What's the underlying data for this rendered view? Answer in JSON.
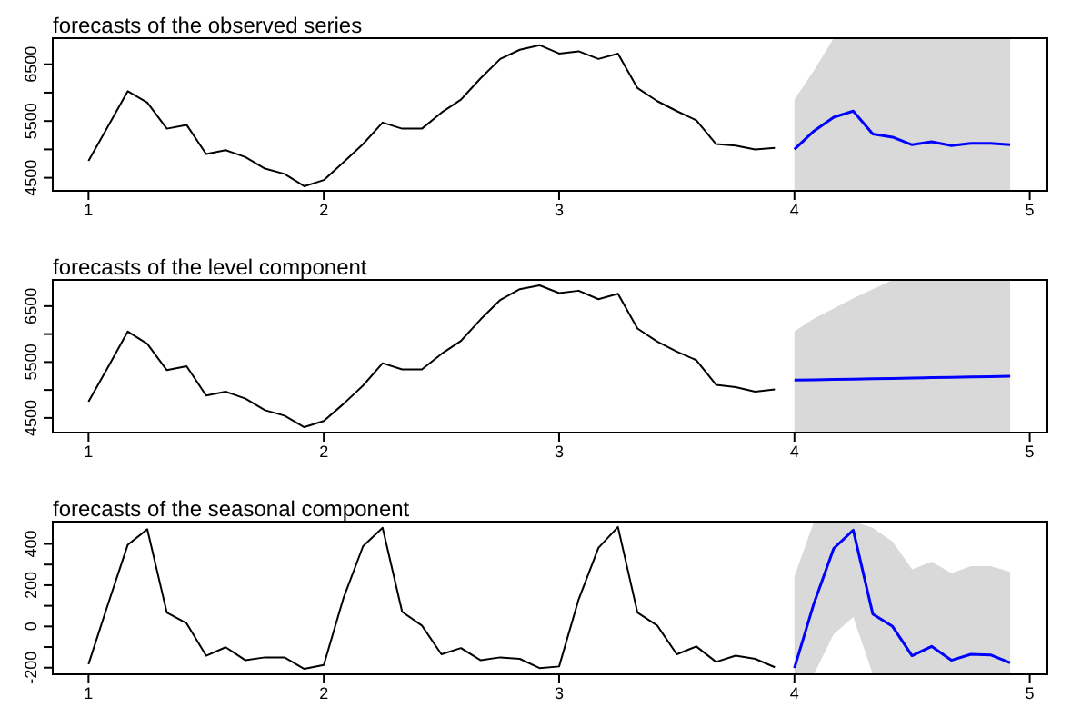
{
  "chart_data": [
    {
      "type": "line",
      "title": "forecasts of the observed series",
      "xlim": [
        0.848,
        5.075
      ],
      "xticks": [
        1,
        2,
        3,
        4,
        5
      ],
      "ylim": [
        4270,
        6960
      ],
      "yticks": [
        4500,
        {
          "value": 5000,
          "label": null
        },
        5500,
        {
          "value": 6000,
          "label": null
        },
        6500
      ],
      "grid": false,
      "marker": "none",
      "series": [
        {
          "color": "#000000",
          "x": [
            1,
            1.083,
            1.167,
            1.25,
            1.333,
            1.417,
            1.5,
            1.583,
            1.667,
            1.75,
            1.833,
            1.917,
            2,
            2.083,
            2.167,
            2.25,
            2.333,
            2.417,
            2.5,
            2.583,
            2.667,
            2.75,
            2.833,
            2.917,
            3,
            3.083,
            3.167,
            3.25,
            3.333,
            3.417,
            3.5,
            3.583,
            3.667,
            3.75,
            3.833,
            3.917
          ],
          "values": [
            4797,
            5405,
            6027,
            5824,
            5365,
            5432,
            4919,
            4986,
            4865,
            4662,
            4568,
            4351,
            4460,
            4770,
            5094,
            5473,
            5365,
            5365,
            5648,
            5878,
            6256,
            6594,
            6756,
            6837,
            6689,
            6729,
            6594,
            6689,
            6081,
            5851,
            5675,
            5513,
            5094,
            5067,
            5000,
            5027
          ]
        },
        {
          "color": "#0000ff",
          "x": [
            4,
            4.083,
            4.167,
            4.25,
            4.333,
            4.417,
            4.5,
            4.583,
            4.667,
            4.75,
            4.833,
            4.917
          ],
          "values": [
            5000,
            5324,
            5567,
            5675,
            5270,
            5216,
            5081,
            5135,
            5067,
            5108,
            5108,
            5081
          ],
          "lower": [
            4270,
            4270,
            4270,
            4270,
            4270,
            4270,
            4270,
            4270,
            4270,
            4270,
            4270,
            4270
          ],
          "upper": [
            5878,
            6391,
            6960,
            6960,
            6960,
            6960,
            6960,
            6960,
            6960,
            6960,
            6960,
            6960
          ]
        }
      ]
    },
    {
      "type": "line",
      "title": "forecasts of the level component",
      "xlim": [
        0.848,
        5.075
      ],
      "xticks": [
        1,
        2,
        3,
        4,
        5
      ],
      "ylim": [
        4238,
        6969
      ],
      "yticks": [
        4500,
        {
          "value": 5000,
          "label": null
        },
        5500,
        {
          "value": 6000,
          "label": null
        },
        6500
      ],
      "grid": false,
      "marker": "none",
      "series": [
        {
          "color": "#000000",
          "x": [
            1,
            1.083,
            1.167,
            1.25,
            1.333,
            1.417,
            1.5,
            1.583,
            1.667,
            1.75,
            1.833,
            1.917,
            2,
            2.083,
            2.167,
            2.25,
            2.333,
            2.417,
            2.5,
            2.583,
            2.667,
            2.75,
            2.833,
            2.917,
            3,
            3.083,
            3.167,
            3.25,
            3.333,
            3.417,
            3.5,
            3.583,
            3.667,
            3.75,
            3.833,
            3.917
          ],
          "values": [
            4790,
            5410,
            6045,
            5824,
            5355,
            5424,
            4900,
            4969,
            4845,
            4638,
            4541,
            4335,
            4445,
            4748,
            5079,
            5479,
            5369,
            5369,
            5645,
            5879,
            6265,
            6610,
            6803,
            6872,
            6734,
            6776,
            6624,
            6721,
            6100,
            5865,
            5686,
            5534,
            5093,
            5052,
            4969,
            5010
          ]
        },
        {
          "color": "#0000ff",
          "x": [
            4,
            4.083,
            4.167,
            4.25,
            4.333,
            4.417,
            4.5,
            4.583,
            4.667,
            4.75,
            4.833,
            4.917
          ],
          "values": [
            5176,
            5182,
            5189,
            5195,
            5201,
            5207,
            5214,
            5220,
            5226,
            5232,
            5239,
            5245
          ],
          "lower": [
            4238,
            4238,
            4238,
            4238,
            4238,
            4238,
            4238,
            4238,
            4238,
            4238,
            4238,
            4238
          ],
          "upper": [
            6045,
            6279,
            6458,
            6638,
            6803,
            6969,
            6969,
            6969,
            6969,
            6969,
            6969,
            6969
          ]
        }
      ]
    },
    {
      "type": "line",
      "title": "forecasts of the seasonal component",
      "xlim": [
        0.848,
        5.075
      ],
      "xticks": [
        1,
        2,
        3,
        4,
        5
      ],
      "ylim": [
        -232,
        508
      ],
      "yticks": [
        -200,
        {
          "value": -100,
          "label": null
        },
        0,
        {
          "value": 100,
          "label": null
        },
        200,
        {
          "value": 300,
          "label": null
        },
        400
      ],
      "grid": false,
      "marker": "none",
      "series": [
        {
          "color": "#000000",
          "x": [
            1,
            1.083,
            1.167,
            1.25,
            1.333,
            1.417,
            1.5,
            1.583,
            1.667,
            1.75,
            1.833,
            1.917,
            2,
            2.083,
            2.167,
            2.25,
            2.333,
            2.417,
            2.5,
            2.583,
            2.667,
            2.75,
            2.833,
            2.917,
            3,
            3.083,
            3.167,
            3.25,
            3.333,
            3.417,
            3.5,
            3.583,
            3.667,
            3.75,
            3.833,
            3.917
          ],
          "values": [
            -183,
            108,
            396,
            471,
            67,
            15,
            -142,
            -101,
            -164,
            -150,
            -150,
            -206,
            -187,
            135,
            389,
            478,
            71,
            4,
            -135,
            -105,
            -164,
            -150,
            -157,
            -202,
            -194,
            131,
            381,
            482,
            67,
            4,
            -135,
            -97,
            -172,
            -142,
            -157,
            -198
          ]
        },
        {
          "color": "#0000ff",
          "x": [
            4,
            4.083,
            4.167,
            4.25,
            4.333,
            4.417,
            4.5,
            4.583,
            4.667,
            4.75,
            4.833,
            4.917
          ],
          "values": [
            -202,
            112,
            378,
            467,
            60,
            0,
            -142,
            -97,
            -164,
            -135,
            -138,
            -176
          ],
          "lower": [
            -232,
            -232,
            -37,
            45,
            -232,
            -232,
            -232,
            -232,
            -232,
            -232,
            -232,
            -232
          ],
          "upper": [
            243,
            508,
            508,
            508,
            478,
            411,
            277,
            314,
            258,
            292,
            292,
            265
          ]
        }
      ]
    }
  ]
}
